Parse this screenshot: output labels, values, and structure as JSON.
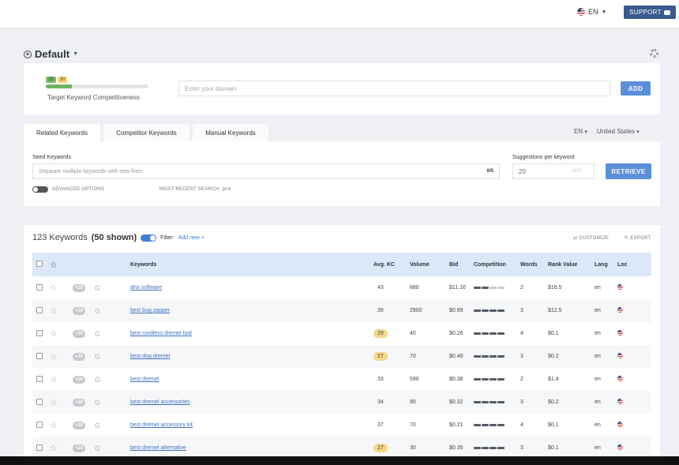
{
  "topbar": {
    "lang": "EN",
    "support_label": "SUPPORT"
  },
  "project": {
    "title": "Default"
  },
  "domain_card": {
    "kc_values": [
      "25",
      "30"
    ],
    "kc_progress": 0.25,
    "kc_label": "Target Keyword Competitiveness",
    "domain_placeholder": "Enter your domain",
    "add_label": "ADD"
  },
  "tabs": [
    {
      "label": "Related Keywords",
      "active": true
    },
    {
      "label": "Competitor Keywords",
      "active": false
    },
    {
      "label": "Manual Keywords",
      "active": false
    }
  ],
  "locale": {
    "lang": "EN",
    "country": "United States"
  },
  "seed": {
    "label": "Seed Keywords",
    "placeholder": "Separate multiple keywords with new lines",
    "count": "0/5",
    "suggestions_label": "Suggestions per keyword",
    "suggestions_value": "20",
    "suggestions_max": "/400",
    "retrieve_label": "RETRIEVE",
    "advanced_label": "ADVANCED OPTIONS",
    "recent_label": "MOST RECENT SEARCH: pnd"
  },
  "results": {
    "count_text": "123 Keywords",
    "shown_text": "(50 shown)",
    "filter_label": "Filter:",
    "add_new_label": "Add new +",
    "customize_label": "CUSTOMIZE",
    "export_label": "EXPORT",
    "columns": [
      "Keywords",
      "Avg. KC",
      "Volume",
      "Bid",
      "Competition",
      "Words",
      "Rank Value",
      "Lang",
      "Loc"
    ],
    "rows": [
      {
        "keyword": "aha software",
        "kc": "43",
        "kc_highlight": false,
        "volume": "880",
        "bid": "$11.16",
        "competition": 0.6,
        "words": "2",
        "rank": "$16.5",
        "lang": "en"
      },
      {
        "keyword": "best bug zapper",
        "kc": "39",
        "kc_highlight": false,
        "volume": "2900",
        "bid": "$0.69",
        "competition": 1.0,
        "words": "3",
        "rank": "$12.5",
        "lang": "en"
      },
      {
        "keyword": "best cordless dremel tool",
        "kc": "29",
        "kc_highlight": true,
        "volume": "40",
        "bid": "$0.26",
        "competition": 1.0,
        "words": "4",
        "rank": "$0.1",
        "lang": "en"
      },
      {
        "keyword": "best dog dremel",
        "kc": "27",
        "kc_highlight": true,
        "volume": "70",
        "bid": "$0.40",
        "competition": 1.0,
        "words": "3",
        "rank": "$0.2",
        "lang": "en"
      },
      {
        "keyword": "best dremel",
        "kc": "33",
        "kc_highlight": false,
        "volume": "590",
        "bid": "$0.38",
        "competition": 1.0,
        "words": "2",
        "rank": "$1.4",
        "lang": "en"
      },
      {
        "keyword": "best dremel accessories",
        "kc": "34",
        "kc_highlight": false,
        "volume": "90",
        "bid": "$0.32",
        "competition": 1.0,
        "words": "3",
        "rank": "$0.2",
        "lang": "en"
      },
      {
        "keyword": "best dremel accessory kit",
        "kc": "37",
        "kc_highlight": false,
        "volume": "70",
        "bid": "$0.21",
        "competition": 1.0,
        "words": "4",
        "rank": "$0.1",
        "lang": "en"
      },
      {
        "keyword": "best dremel alternative",
        "kc": "27",
        "kc_highlight": true,
        "volume": "30",
        "bid": "$0.35",
        "competition": 1.0,
        "words": "3",
        "rank": "$0.1",
        "lang": "en"
      }
    ]
  }
}
